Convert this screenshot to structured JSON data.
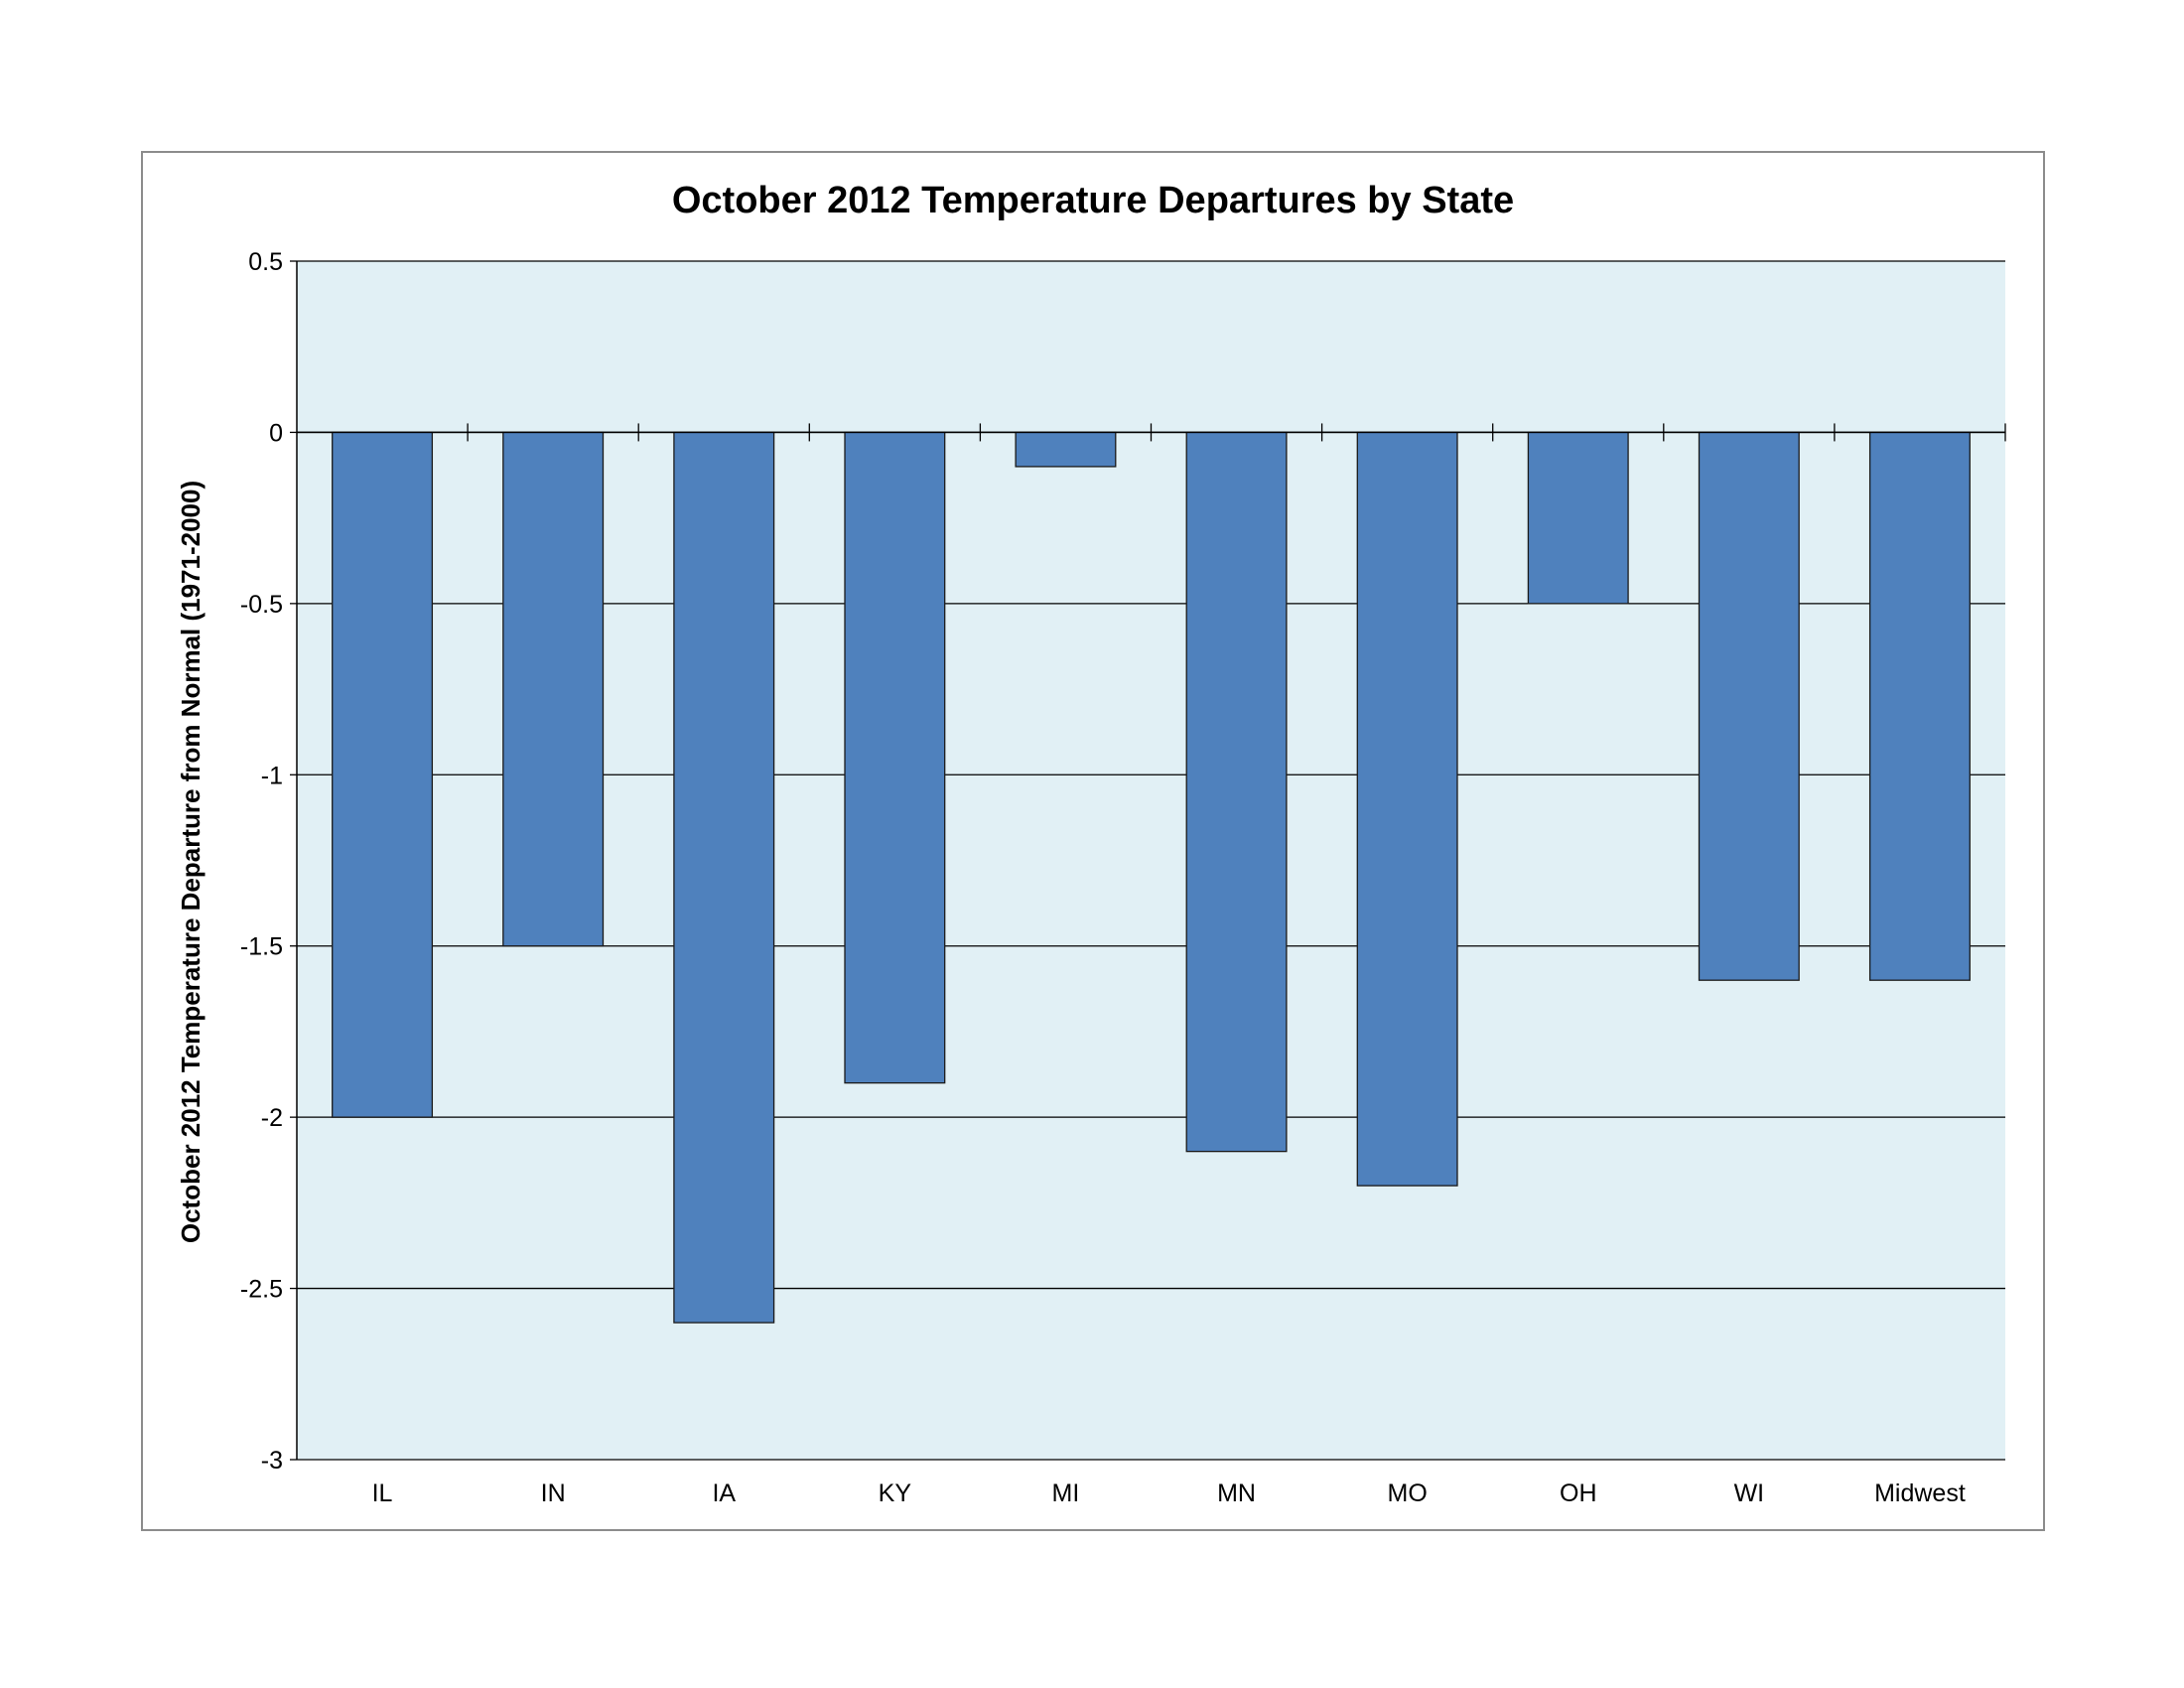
{
  "chart_data": {
    "type": "bar",
    "title": "October 2012 Temperature Departures by State",
    "xlabel": "",
    "ylabel": "October 2012 Temperature Departure from Normal (1971-2000)",
    "categories": [
      "IL",
      "IN",
      "IA",
      "KY",
      "MI",
      "MN",
      "MO",
      "OH",
      "WI",
      "Midwest"
    ],
    "values": [
      -2.0,
      -1.5,
      -2.6,
      -1.9,
      -0.1,
      -2.1,
      -2.2,
      -0.5,
      -1.6,
      -1.6
    ],
    "ylim": [
      -3,
      0.5
    ],
    "yticks": [
      0.5,
      0,
      -0.5,
      -1,
      -1.5,
      -2,
      -2.5,
      -3
    ],
    "ytick_labels": [
      "0.5",
      "0",
      "-0.5",
      "-1",
      "-1.5",
      "-2",
      "-2.5",
      "-3"
    ],
    "grid": true,
    "legend": "none",
    "colors": {
      "bar": "#4f81bd",
      "bar_edge": "#1a1a1a",
      "plot_bg": "#e1f0f5",
      "gridline": "#000000",
      "frame": "#8c8c8c"
    }
  }
}
